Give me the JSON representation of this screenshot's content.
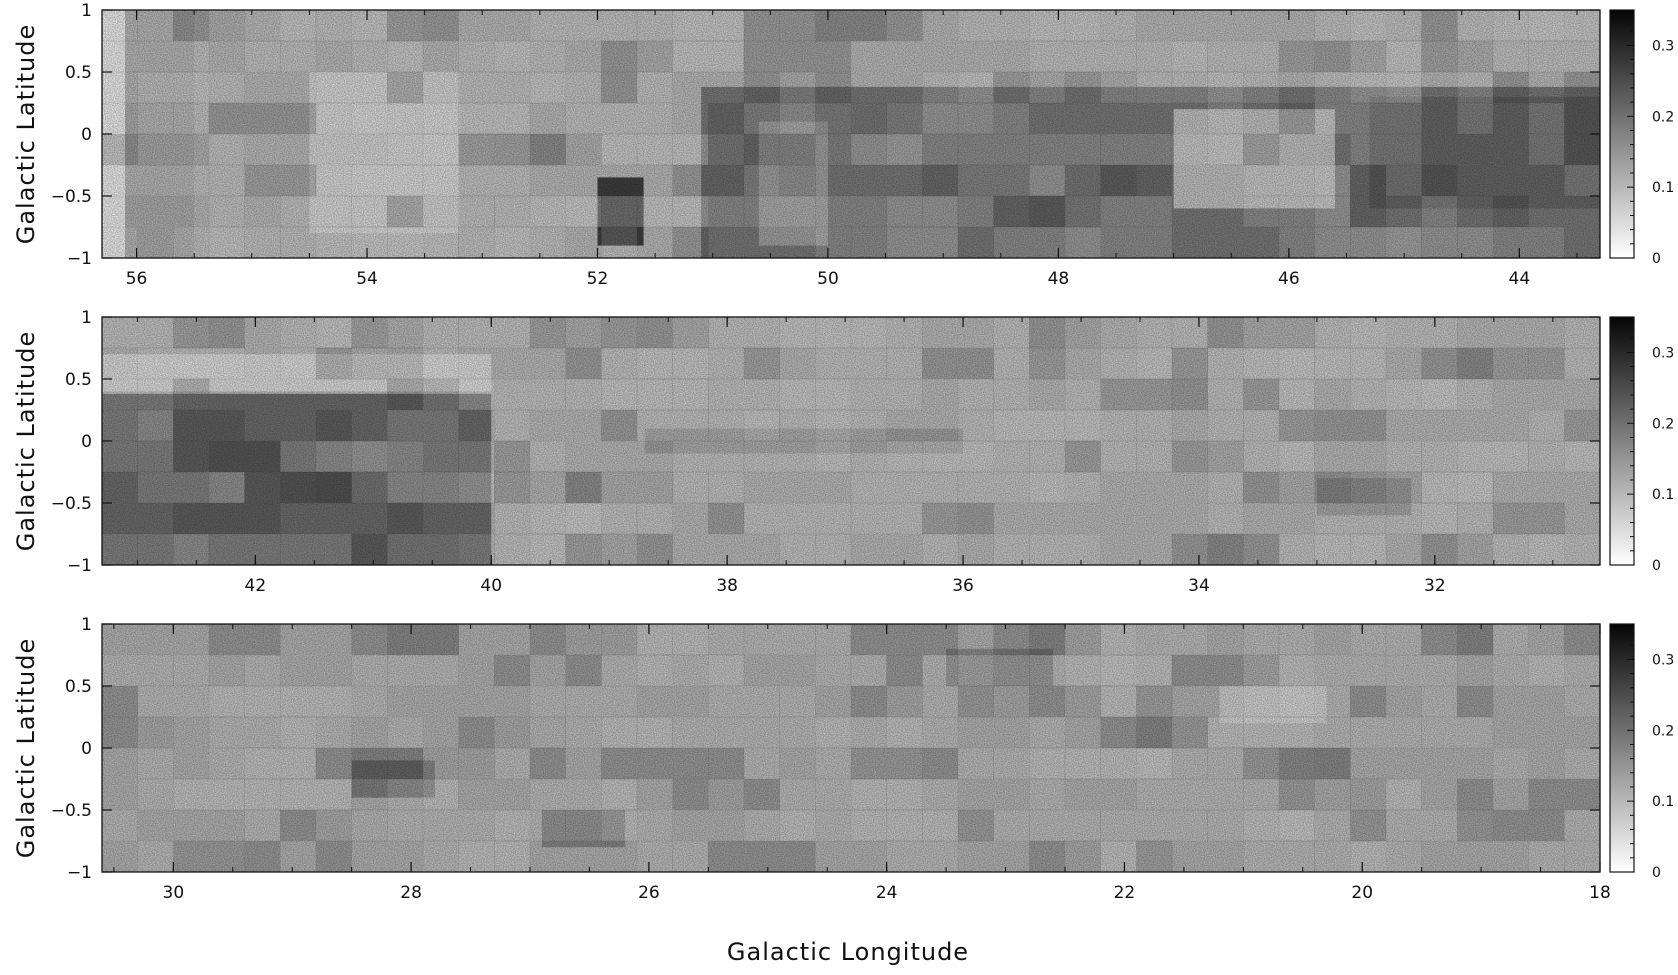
{
  "xlabel": "Galactic Longitude",
  "ylabel": "Galactic Latitude",
  "chart_data": [
    {
      "type": "heatmap",
      "xlabel": "",
      "ylabel": "Galactic Latitude",
      "xlim": [
        56.3,
        43.3
      ],
      "ylim": [
        -1,
        1
      ],
      "xticks": [
        56,
        54,
        52,
        50,
        48,
        46,
        44
      ],
      "yticks": [
        1,
        0.5,
        0,
        -0.5,
        -1
      ],
      "yticklabels": [
        "1",
        "0.5",
        "0",
        "−0.5",
        "−1"
      ],
      "colorbar": {
        "min": 0,
        "max": 0.35,
        "ticks": [
          0,
          0.1,
          0.2,
          0.3
        ],
        "ticklabels": [
          "0",
          "0.1",
          "0.2",
          "0.3"
        ],
        "colormap": "gray_r"
      },
      "regions": [
        {
          "l": [
            56.1,
            43.3
          ],
          "b": [
            -1,
            1
          ],
          "value": 0.07
        },
        {
          "l": [
            51.1,
            43.3
          ],
          "b": [
            -1,
            0.38
          ],
          "value": 0.17
        },
        {
          "l": [
            47.0,
            45.6
          ],
          "b": [
            -0.6,
            0.2
          ],
          "value": 0.06
        },
        {
          "l": [
            52.0,
            51.6
          ],
          "b": [
            -0.9,
            -0.35
          ],
          "value": 0.26
        },
        {
          "l": [
            56.1,
            55.5
          ],
          "b": [
            -1,
            1
          ],
          "value": 0.09
        },
        {
          "l": [
            54.5,
            53.2
          ],
          "b": [
            -0.8,
            0.5
          ],
          "value": 0.03
        },
        {
          "l": [
            50.6,
            50.0
          ],
          "b": [
            -0.9,
            0.1
          ],
          "value": 0.11
        },
        {
          "l": [
            45.3,
            43.3
          ],
          "b": [
            -0.6,
            0.3
          ],
          "value": 0.2
        }
      ]
    },
    {
      "type": "heatmap",
      "xlabel": "",
      "ylabel": "Galactic Latitude",
      "xlim": [
        43.3,
        30.6
      ],
      "ylim": [
        -1,
        1
      ],
      "xticks": [
        42,
        40,
        38,
        36,
        34,
        32
      ],
      "yticks": [
        1,
        0.5,
        0,
        -0.5,
        -1
      ],
      "yticklabels": [
        "1",
        "0.5",
        "0",
        "−0.5",
        "−1"
      ],
      "colorbar": {
        "min": 0,
        "max": 0.35,
        "ticks": [
          0,
          0.1,
          0.2,
          0.3
        ],
        "ticklabels": [
          "0",
          "0.1",
          "0.2",
          "0.3"
        ],
        "colormap": "gray_r"
      },
      "regions": [
        {
          "l": [
            43.3,
            30.6
          ],
          "b": [
            -1,
            1
          ],
          "value": 0.07
        },
        {
          "l": [
            43.3,
            40.0
          ],
          "b": [
            -1,
            0.38
          ],
          "value": 0.19
        },
        {
          "l": [
            43.3,
            40.0
          ],
          "b": [
            0.4,
            0.7
          ],
          "value": 0.02
        },
        {
          "l": [
            38.7,
            36.0
          ],
          "b": [
            -0.1,
            0.1
          ],
          "value": 0.11
        },
        {
          "l": [
            33.0,
            32.2
          ],
          "b": [
            -0.6,
            -0.3
          ],
          "value": 0.12
        }
      ]
    },
    {
      "type": "heatmap",
      "xlabel": "Galactic Longitude",
      "ylabel": "Galactic Latitude",
      "xlim": [
        30.6,
        18.0
      ],
      "ylim": [
        -1,
        1
      ],
      "xticks": [
        30,
        28,
        26,
        24,
        22,
        20,
        18
      ],
      "yticks": [
        1,
        0.5,
        0,
        -0.5,
        -1
      ],
      "yticklabels": [
        "1",
        "0.5",
        "0",
        "−0.5",
        "−1"
      ],
      "colorbar": {
        "min": 0,
        "max": 0.35,
        "ticks": [
          0,
          0.1,
          0.2,
          0.3
        ],
        "ticklabels": [
          "0",
          "0.1",
          "0.2",
          "0.3"
        ],
        "colormap": "gray_r"
      },
      "regions": [
        {
          "l": [
            30.6,
            18.0
          ],
          "b": [
            -1,
            1
          ],
          "value": 0.08
        },
        {
          "l": [
            28.5,
            27.8
          ],
          "b": [
            -0.4,
            -0.1
          ],
          "value": 0.16
        },
        {
          "l": [
            26.9,
            26.2
          ],
          "b": [
            -0.8,
            -0.5
          ],
          "value": 0.15
        },
        {
          "l": [
            23.5,
            22.6
          ],
          "b": [
            0.5,
            0.8
          ],
          "value": 0.14
        },
        {
          "l": [
            21.2,
            20.3
          ],
          "b": [
            0.2,
            0.5
          ],
          "value": 0.04
        }
      ]
    }
  ]
}
